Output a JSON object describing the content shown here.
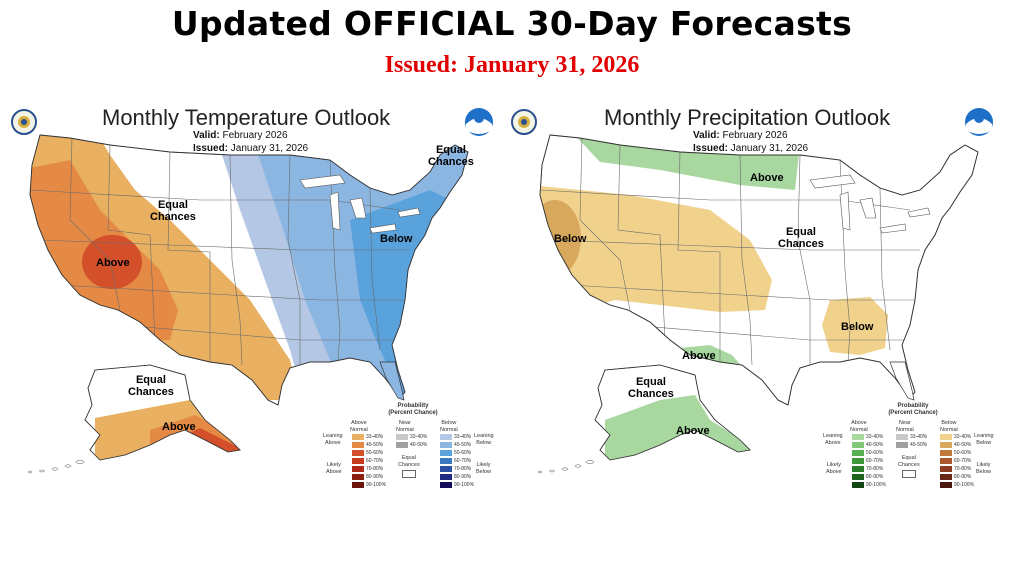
{
  "header": {
    "title": "Updated OFFICIAL 30-Day Forecasts",
    "issued": "Issued: January 31, 2026"
  },
  "colors": {
    "issued_red": "#e00000",
    "above_temp_light": "#e8b060",
    "above_temp_mid": "#e48a44",
    "above_temp_dark": "#d4502a",
    "below_temp_light": "#b4c8e6",
    "below_temp_mid": "#8cb6e2",
    "below_temp_dark": "#5aa2dc",
    "precip_above": "#a8d8a0",
    "precip_below_light": "#f0d28c",
    "precip_below_mid": "#d8a85c"
  },
  "temp_panel": {
    "title": "Monthly Temperature Outlook",
    "valid_label": "Valid:",
    "valid_value": "February 2026",
    "issued_label": "Issued:",
    "issued_value": "January 31, 2026",
    "regions": {
      "ec_west": [
        "Equal",
        "Chances"
      ],
      "ec_ne": [
        "Equal",
        "Chances"
      ],
      "above_sw": "Above",
      "below_east": "Below",
      "ec_alaska": [
        "Equal",
        "Chances"
      ],
      "above_alaska": "Above"
    }
  },
  "precip_panel": {
    "title": "Monthly Precipitation Outlook",
    "valid_label": "Valid:",
    "valid_value": "February 2026",
    "issued_label": "Issued:",
    "issued_value": "January 31, 2026",
    "regions": {
      "above_north": "Above",
      "below_west": "Below",
      "ec_east": [
        "Equal",
        "Chances"
      ],
      "below_se": "Below",
      "above_tx": "Above",
      "ec_alaska": [
        "Equal",
        "Chances"
      ],
      "above_alaska": "Above"
    }
  },
  "legend": {
    "title": [
      "Probability",
      "(Percent Chance)"
    ],
    "temp_columns": [
      [
        "Above",
        "Normal"
      ],
      [
        "Near",
        "Normal"
      ],
      [
        "Below",
        "Normal"
      ]
    ],
    "precip_columns": [
      [
        "Above",
        "Normal"
      ],
      [
        "Near",
        "Normal"
      ],
      [
        "Below",
        "Normal"
      ]
    ],
    "ranges": [
      "33-40%",
      "40-50%",
      "50-60%",
      "60-70%",
      "70-80%",
      "80-90%",
      "90-100%"
    ],
    "near_ranges": [
      "33-40%",
      "40-50%"
    ],
    "equal_chances": [
      "Equal",
      "Chances"
    ],
    "temp_left": {
      "leaning": [
        "Leaning",
        "Above"
      ],
      "likely": [
        "Likely",
        "Above"
      ]
    },
    "temp_right": {
      "leaning": [
        "Leaning",
        "Below"
      ],
      "likely": [
        "Likely",
        "Below"
      ]
    },
    "precip_left": {
      "leaning": [
        "Leaning",
        "Above"
      ],
      "likely": [
        "Likely",
        "Above"
      ]
    },
    "precip_right": {
      "leaning": [
        "Leaning",
        "Below"
      ],
      "likely": [
        "Likely",
        "Below"
      ]
    },
    "above_temp_colors": [
      "#e8b060",
      "#e48a44",
      "#d4502a",
      "#c83c1e",
      "#b02818",
      "#8c1e10",
      "#6a140c"
    ],
    "below_temp_colors": [
      "#b4c8e6",
      "#8cb6e2",
      "#5aa2dc",
      "#3c78c0",
      "#2a4ea0",
      "#1e2a82",
      "#140e5a"
    ],
    "near_colors": [
      "#c8c8c8",
      "#a0a0a0"
    ],
    "above_precip_colors": [
      "#a8d8a0",
      "#80c878",
      "#58b050",
      "#3c983a",
      "#2a7e2a",
      "#1e641e",
      "#124612"
    ],
    "below_precip_colors": [
      "#f0d28c",
      "#d8a85c",
      "#c0783c",
      "#a8582c",
      "#8c3c20",
      "#6a2818",
      "#4a1810"
    ]
  }
}
